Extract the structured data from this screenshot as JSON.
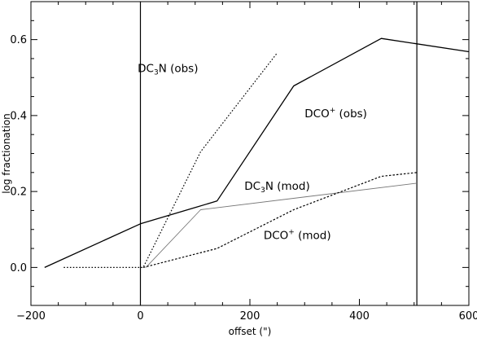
{
  "chart_data": {
    "type": "line",
    "xlabel": "offset (\")",
    "ylabel": "log fractionation",
    "xlim": [
      -200,
      600
    ],
    "ylim": [
      -0.1,
      0.7
    ],
    "xticks": [
      -200,
      0,
      200,
      400,
      600
    ],
    "xtick_labels": [
      "-200",
      "0",
      "200",
      "400",
      "600"
    ],
    "yticks": [
      0.0,
      0.2,
      0.4,
      0.6
    ],
    "ytick_labels": [
      "0.0",
      "0.2",
      "0.4",
      "0.6"
    ],
    "vertical_lines": [
      0,
      505
    ],
    "grid": false,
    "series": [
      {
        "name": "DCO+ (obs)",
        "style": "solid",
        "color": "#000000",
        "x": [
          -175,
          0,
          140,
          280,
          440,
          600
        ],
        "y": [
          0.0,
          0.115,
          0.175,
          0.478,
          0.603,
          0.568
        ]
      },
      {
        "name": "DC3N (obs)",
        "style": "dotted",
        "color": "#000000",
        "x": [
          -140,
          5,
          110,
          250
        ],
        "y": [
          0.0,
          0.0,
          0.305,
          0.565
        ]
      },
      {
        "name": "DC3N (mod)",
        "style": "solid-thin",
        "color": "#777777",
        "x": [
          10,
          110,
          505
        ],
        "y": [
          0.0,
          0.152,
          0.222
        ]
      },
      {
        "name": "DCO+ (mod)",
        "style": "dashed",
        "color": "#000000",
        "x": [
          5,
          140,
          280,
          440,
          505
        ],
        "y": [
          0.0,
          0.05,
          0.152,
          0.24,
          0.25
        ]
      }
    ],
    "annotations": [
      {
        "x": -5,
        "y": 0.515,
        "base": "DC",
        "sub": "3",
        "rest": "N (obs)"
      },
      {
        "x": 300,
        "y": 0.395,
        "base": "DCO",
        "sup": "+",
        "rest": " (obs)"
      },
      {
        "x": 190,
        "y": 0.205,
        "base": "DC",
        "sub": "3",
        "rest": "N (mod)"
      },
      {
        "x": 225,
        "y": 0.075,
        "base": "DCO",
        "sup": "+",
        "rest": " (mod)"
      }
    ]
  }
}
